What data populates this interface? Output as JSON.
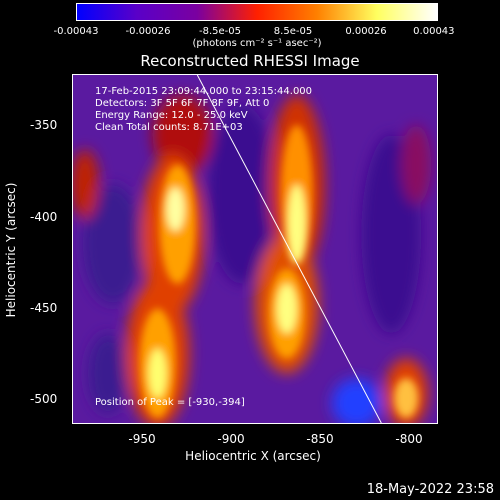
{
  "colorbar": {
    "tick_labels": [
      "-0.00043",
      "-0.00026",
      "-8.5e-05",
      "8.5e-05",
      "0.00026",
      "0.00043"
    ],
    "unit_label": "(photons cm⁻² s⁻¹ asec⁻²)",
    "colors": [
      "#0000ff",
      "#5a00c8",
      "#7a00a0",
      "#ff2000",
      "#ff8000",
      "#ffff60",
      "#ffffff"
    ]
  },
  "plot": {
    "title": "Reconstructed RHESSI Image",
    "info_lines": [
      "17-Feb-2015 23:09:44.000 to 23:15:44.000",
      "Detectors: 3F 5F 6F 7F 8F 9F, Att 0",
      "Energy Range: 12.0 - 25.0 keV",
      "Clean      Total counts: 8.71E+03"
    ],
    "peak_label": "Position of Peak = [-930,-394]",
    "y_ticks": [
      "-350",
      "-400",
      "-450",
      "-500"
    ],
    "x_ticks": [
      "-950",
      "-900",
      "-850",
      "-800"
    ],
    "x_label": "Heliocentric X (arcsec)",
    "y_label": "Heliocentric Y (arcsec)"
  },
  "footer": {
    "timestamp": "18-May-2022 23:58"
  }
}
